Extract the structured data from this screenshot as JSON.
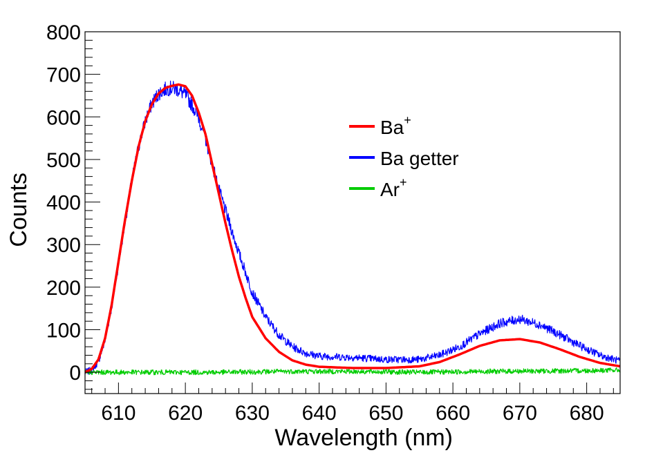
{
  "chart_data": {
    "type": "line",
    "title": "",
    "xlabel": "Wavelength (nm)",
    "ylabel": "Counts",
    "xlim": [
      605,
      685
    ],
    "ylim": [
      -50,
      800
    ],
    "x_ticks": [
      610,
      620,
      630,
      640,
      650,
      660,
      670,
      680
    ],
    "y_ticks": [
      0,
      100,
      200,
      300,
      400,
      500,
      600,
      700,
      800
    ],
    "grid": false,
    "legend_position": "top-right",
    "series": [
      {
        "name": "Ba",
        "name_sup": "+",
        "color": "#ff0000",
        "style": "smooth",
        "x": [
          605,
          606,
          607,
          608,
          609,
          610,
          611,
          612,
          613,
          614,
          615,
          616,
          617,
          618,
          619,
          620,
          621,
          622,
          623,
          624,
          625,
          626,
          627,
          628,
          629,
          630,
          632,
          634,
          636,
          638,
          640,
          645,
          650,
          655,
          658,
          661,
          664,
          667,
          670,
          673,
          676,
          679,
          682,
          685
        ],
        "y": [
          0,
          8,
          30,
          80,
          160,
          260,
          360,
          450,
          530,
          590,
          630,
          655,
          668,
          673,
          676,
          672,
          650,
          610,
          560,
          490,
          420,
          350,
          285,
          225,
          175,
          130,
          80,
          48,
          28,
          18,
          13,
          10,
          10,
          14,
          24,
          42,
          62,
          75,
          78,
          70,
          54,
          36,
          22,
          14
        ]
      },
      {
        "name": "Ba getter",
        "name_sup": "",
        "color": "#0000ff",
        "style": "noisy",
        "noise": 10,
        "x": [
          605,
          606,
          607,
          608,
          609,
          610,
          611,
          612,
          613,
          614,
          615,
          616,
          617,
          618,
          619,
          620,
          621,
          622,
          623,
          624,
          625,
          626,
          627,
          628,
          629,
          630,
          632,
          634,
          636,
          638,
          640,
          645,
          650,
          655,
          658,
          661,
          664,
          667,
          670,
          673,
          676,
          679,
          682,
          685
        ],
        "y": [
          0,
          5,
          25,
          75,
          155,
          255,
          355,
          450,
          530,
          590,
          632,
          655,
          665,
          668,
          663,
          652,
          628,
          598,
          550,
          490,
          430,
          380,
          330,
          280,
          235,
          188,
          130,
          88,
          60,
          45,
          38,
          35,
          30,
          30,
          40,
          60,
          90,
          115,
          125,
          112,
          88,
          62,
          40,
          26
        ]
      },
      {
        "name": "Ar",
        "name_sup": "+",
        "color": "#00cc00",
        "style": "noisy",
        "noise": 8,
        "x": [
          605,
          615,
          625,
          635,
          645,
          655,
          665,
          675,
          685
        ],
        "y": [
          0,
          0,
          0,
          2,
          2,
          0,
          2,
          3,
          5
        ]
      }
    ]
  }
}
